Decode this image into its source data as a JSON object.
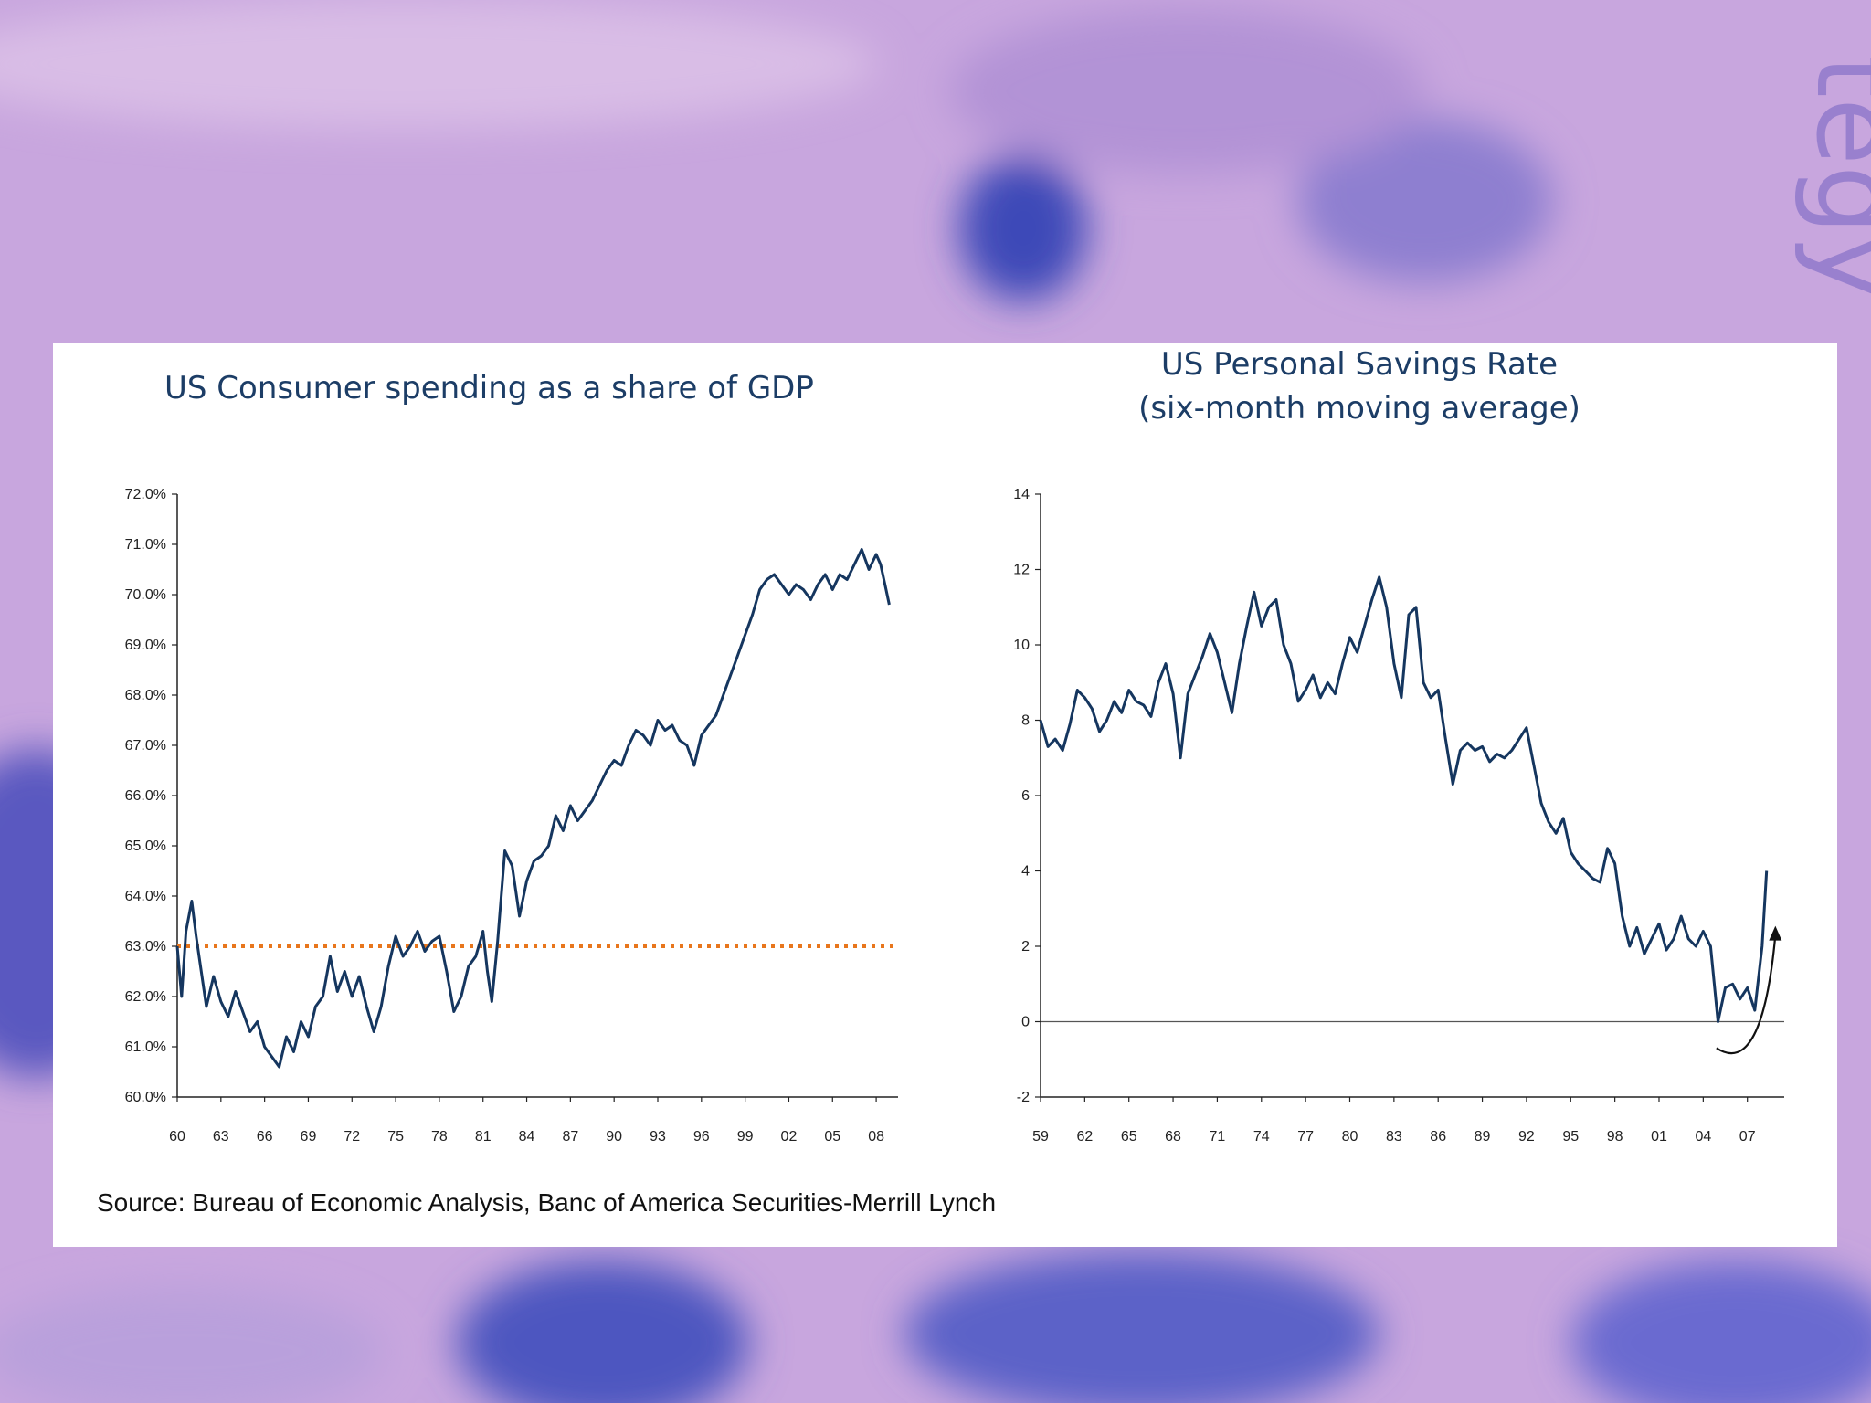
{
  "source_note": "Source: Bureau of Economic Analysis, Banc of America Securities-Merrill Lynch",
  "background_text": "tegy",
  "colors": {
    "series": "#15365f",
    "reference_line": "#e8761c",
    "background": "#c8a6de",
    "panel": "#ffffff"
  },
  "chart_data": [
    {
      "type": "line",
      "title": "US Consumer spending as a share of GDP",
      "ylim": [
        60.0,
        72.0
      ],
      "yticks": [
        "60.0%",
        "61.0%",
        "62.0%",
        "63.0%",
        "64.0%",
        "65.0%",
        "66.0%",
        "67.0%",
        "68.0%",
        "69.0%",
        "70.0%",
        "71.0%",
        "72.0%"
      ],
      "xlim": [
        1960,
        2009.5
      ],
      "xticks": [
        "60",
        "63",
        "66",
        "69",
        "72",
        "75",
        "78",
        "81",
        "84",
        "87",
        "90",
        "93",
        "96",
        "99",
        "02",
        "05",
        "08"
      ],
      "grid": false,
      "reference_line": {
        "y": 63.0,
        "style": "dotted"
      },
      "series": [
        {
          "x": [
            1960,
            1960.3,
            1960.6,
            1961,
            1961.3,
            1961.6,
            1962,
            1962.5,
            1963,
            1963.5,
            1964,
            1964.5,
            1965,
            1965.5,
            1966,
            1966.5,
            1967,
            1967.5,
            1968,
            1968.5,
            1969,
            1969.5,
            1970,
            1970.5,
            1971,
            1971.5,
            1972,
            1972.5,
            1973,
            1973.5,
            1974,
            1974.5,
            1975,
            1975.5,
            1976,
            1976.5,
            1977,
            1977.5,
            1978,
            1978.5,
            1979,
            1979.5,
            1980,
            1980.5,
            1981,
            1981.3,
            1981.6,
            1982,
            1982.5,
            1983,
            1983.5,
            1984,
            1984.5,
            1985,
            1985.5,
            1986,
            1986.5,
            1987,
            1987.5,
            1988,
            1988.5,
            1989,
            1989.5,
            1990,
            1990.5,
            1991,
            1991.5,
            1992,
            1992.5,
            1993,
            1993.5,
            1994,
            1994.5,
            1995,
            1995.5,
            1996,
            1996.5,
            1997,
            1997.5,
            1998,
            1998.5,
            1999,
            1999.5,
            2000,
            2000.5,
            2001,
            2001.5,
            2002,
            2002.5,
            2003,
            2003.5,
            2004,
            2004.5,
            2005,
            2005.5,
            2006,
            2006.5,
            2007,
            2007.5,
            2008,
            2008.3,
            2008.6,
            2008.9
          ],
          "values": [
            63.0,
            62.0,
            63.3,
            63.9,
            63.2,
            62.6,
            61.8,
            62.4,
            61.9,
            61.6,
            62.1,
            61.7,
            61.3,
            61.5,
            61.0,
            60.8,
            60.6,
            61.2,
            60.9,
            61.5,
            61.2,
            61.8,
            62.0,
            62.8,
            62.1,
            62.5,
            62.0,
            62.4,
            61.8,
            61.3,
            61.8,
            62.6,
            63.2,
            62.8,
            63.0,
            63.3,
            62.9,
            63.1,
            63.2,
            62.5,
            61.7,
            62.0,
            62.6,
            62.8,
            63.3,
            62.5,
            61.9,
            63.1,
            64.9,
            64.6,
            63.6,
            64.3,
            64.7,
            64.8,
            65.0,
            65.6,
            65.3,
            65.8,
            65.5,
            65.7,
            65.9,
            66.2,
            66.5,
            66.7,
            66.6,
            67.0,
            67.3,
            67.2,
            67.0,
            67.5,
            67.3,
            67.4,
            67.1,
            67.0,
            66.6,
            67.2,
            67.4,
            67.6,
            68.0,
            68.4,
            68.8,
            69.2,
            69.6,
            70.1,
            70.3,
            70.4,
            70.2,
            70.0,
            70.2,
            70.1,
            69.9,
            70.2,
            70.4,
            70.1,
            70.4,
            70.3,
            70.6,
            70.9,
            70.5,
            70.8,
            70.6,
            70.2,
            69.8
          ]
        }
      ]
    },
    {
      "type": "line",
      "title": "US Personal Savings Rate",
      "subtitle": "(six-month moving average)",
      "ylim": [
        -2,
        14
      ],
      "yticks": [
        "-2",
        "0",
        "2",
        "4",
        "6",
        "8",
        "10",
        "12",
        "14"
      ],
      "xlim": [
        1959,
        2009.5
      ],
      "xticks": [
        "59",
        "62",
        "65",
        "68",
        "71",
        "74",
        "77",
        "80",
        "83",
        "86",
        "89",
        "92",
        "95",
        "98",
        "01",
        "04",
        "07"
      ],
      "grid": false,
      "zero_line": true,
      "annotation": "curved up arrow near end",
      "series": [
        {
          "x": [
            1959,
            1959.5,
            1960,
            1960.5,
            1961,
            1961.5,
            1962,
            1962.5,
            1963,
            1963.5,
            1964,
            1964.5,
            1965,
            1965.5,
            1966,
            1966.5,
            1967,
            1967.5,
            1968,
            1968.5,
            1969,
            1969.5,
            1970,
            1970.5,
            1971,
            1971.5,
            1972,
            1972.5,
            1973,
            1973.5,
            1974,
            1974.5,
            1975,
            1975.5,
            1976,
            1976.5,
            1977,
            1977.5,
            1978,
            1978.5,
            1979,
            1979.5,
            1980,
            1980.5,
            1981,
            1981.5,
            1982,
            1982.5,
            1983,
            1983.5,
            1984,
            1984.5,
            1985,
            1985.5,
            1986,
            1986.5,
            1987,
            1987.5,
            1988,
            1988.5,
            1989,
            1989.5,
            1990,
            1990.5,
            1991,
            1991.5,
            1992,
            1992.5,
            1993,
            1993.5,
            1994,
            1994.5,
            1995,
            1995.5,
            1996,
            1996.5,
            1997,
            1997.5,
            1998,
            1998.5,
            1999,
            1999.5,
            2000,
            2000.5,
            2001,
            2001.5,
            2002,
            2002.5,
            2003,
            2003.5,
            2004,
            2004.5,
            2005,
            2005.5,
            2006,
            2006.5,
            2007,
            2007.5,
            2008,
            2008.3
          ],
          "values": [
            8.0,
            7.3,
            7.5,
            7.2,
            7.9,
            8.8,
            8.6,
            8.3,
            7.7,
            8.0,
            8.5,
            8.2,
            8.8,
            8.5,
            8.4,
            8.1,
            9.0,
            9.5,
            8.7,
            7.0,
            8.7,
            9.2,
            9.7,
            10.3,
            9.8,
            9.0,
            8.2,
            9.5,
            10.5,
            11.4,
            10.5,
            11.0,
            11.2,
            10.0,
            9.5,
            8.5,
            8.8,
            9.2,
            8.6,
            9.0,
            8.7,
            9.5,
            10.2,
            9.8,
            10.5,
            11.2,
            11.8,
            11.0,
            9.5,
            8.6,
            10.8,
            11.0,
            9.0,
            8.6,
            8.8,
            7.5,
            6.3,
            7.2,
            7.4,
            7.2,
            7.3,
            6.9,
            7.1,
            7.0,
            7.2,
            7.5,
            7.8,
            6.8,
            5.8,
            5.3,
            5.0,
            5.4,
            4.5,
            4.2,
            4.0,
            3.8,
            3.7,
            4.6,
            4.2,
            2.8,
            2.0,
            2.5,
            1.8,
            2.2,
            2.6,
            1.9,
            2.2,
            2.8,
            2.2,
            2.0,
            2.4,
            2.0,
            0.0,
            0.9,
            1.0,
            0.6,
            0.9,
            0.3,
            2.0,
            4.0
          ]
        }
      ]
    }
  ]
}
